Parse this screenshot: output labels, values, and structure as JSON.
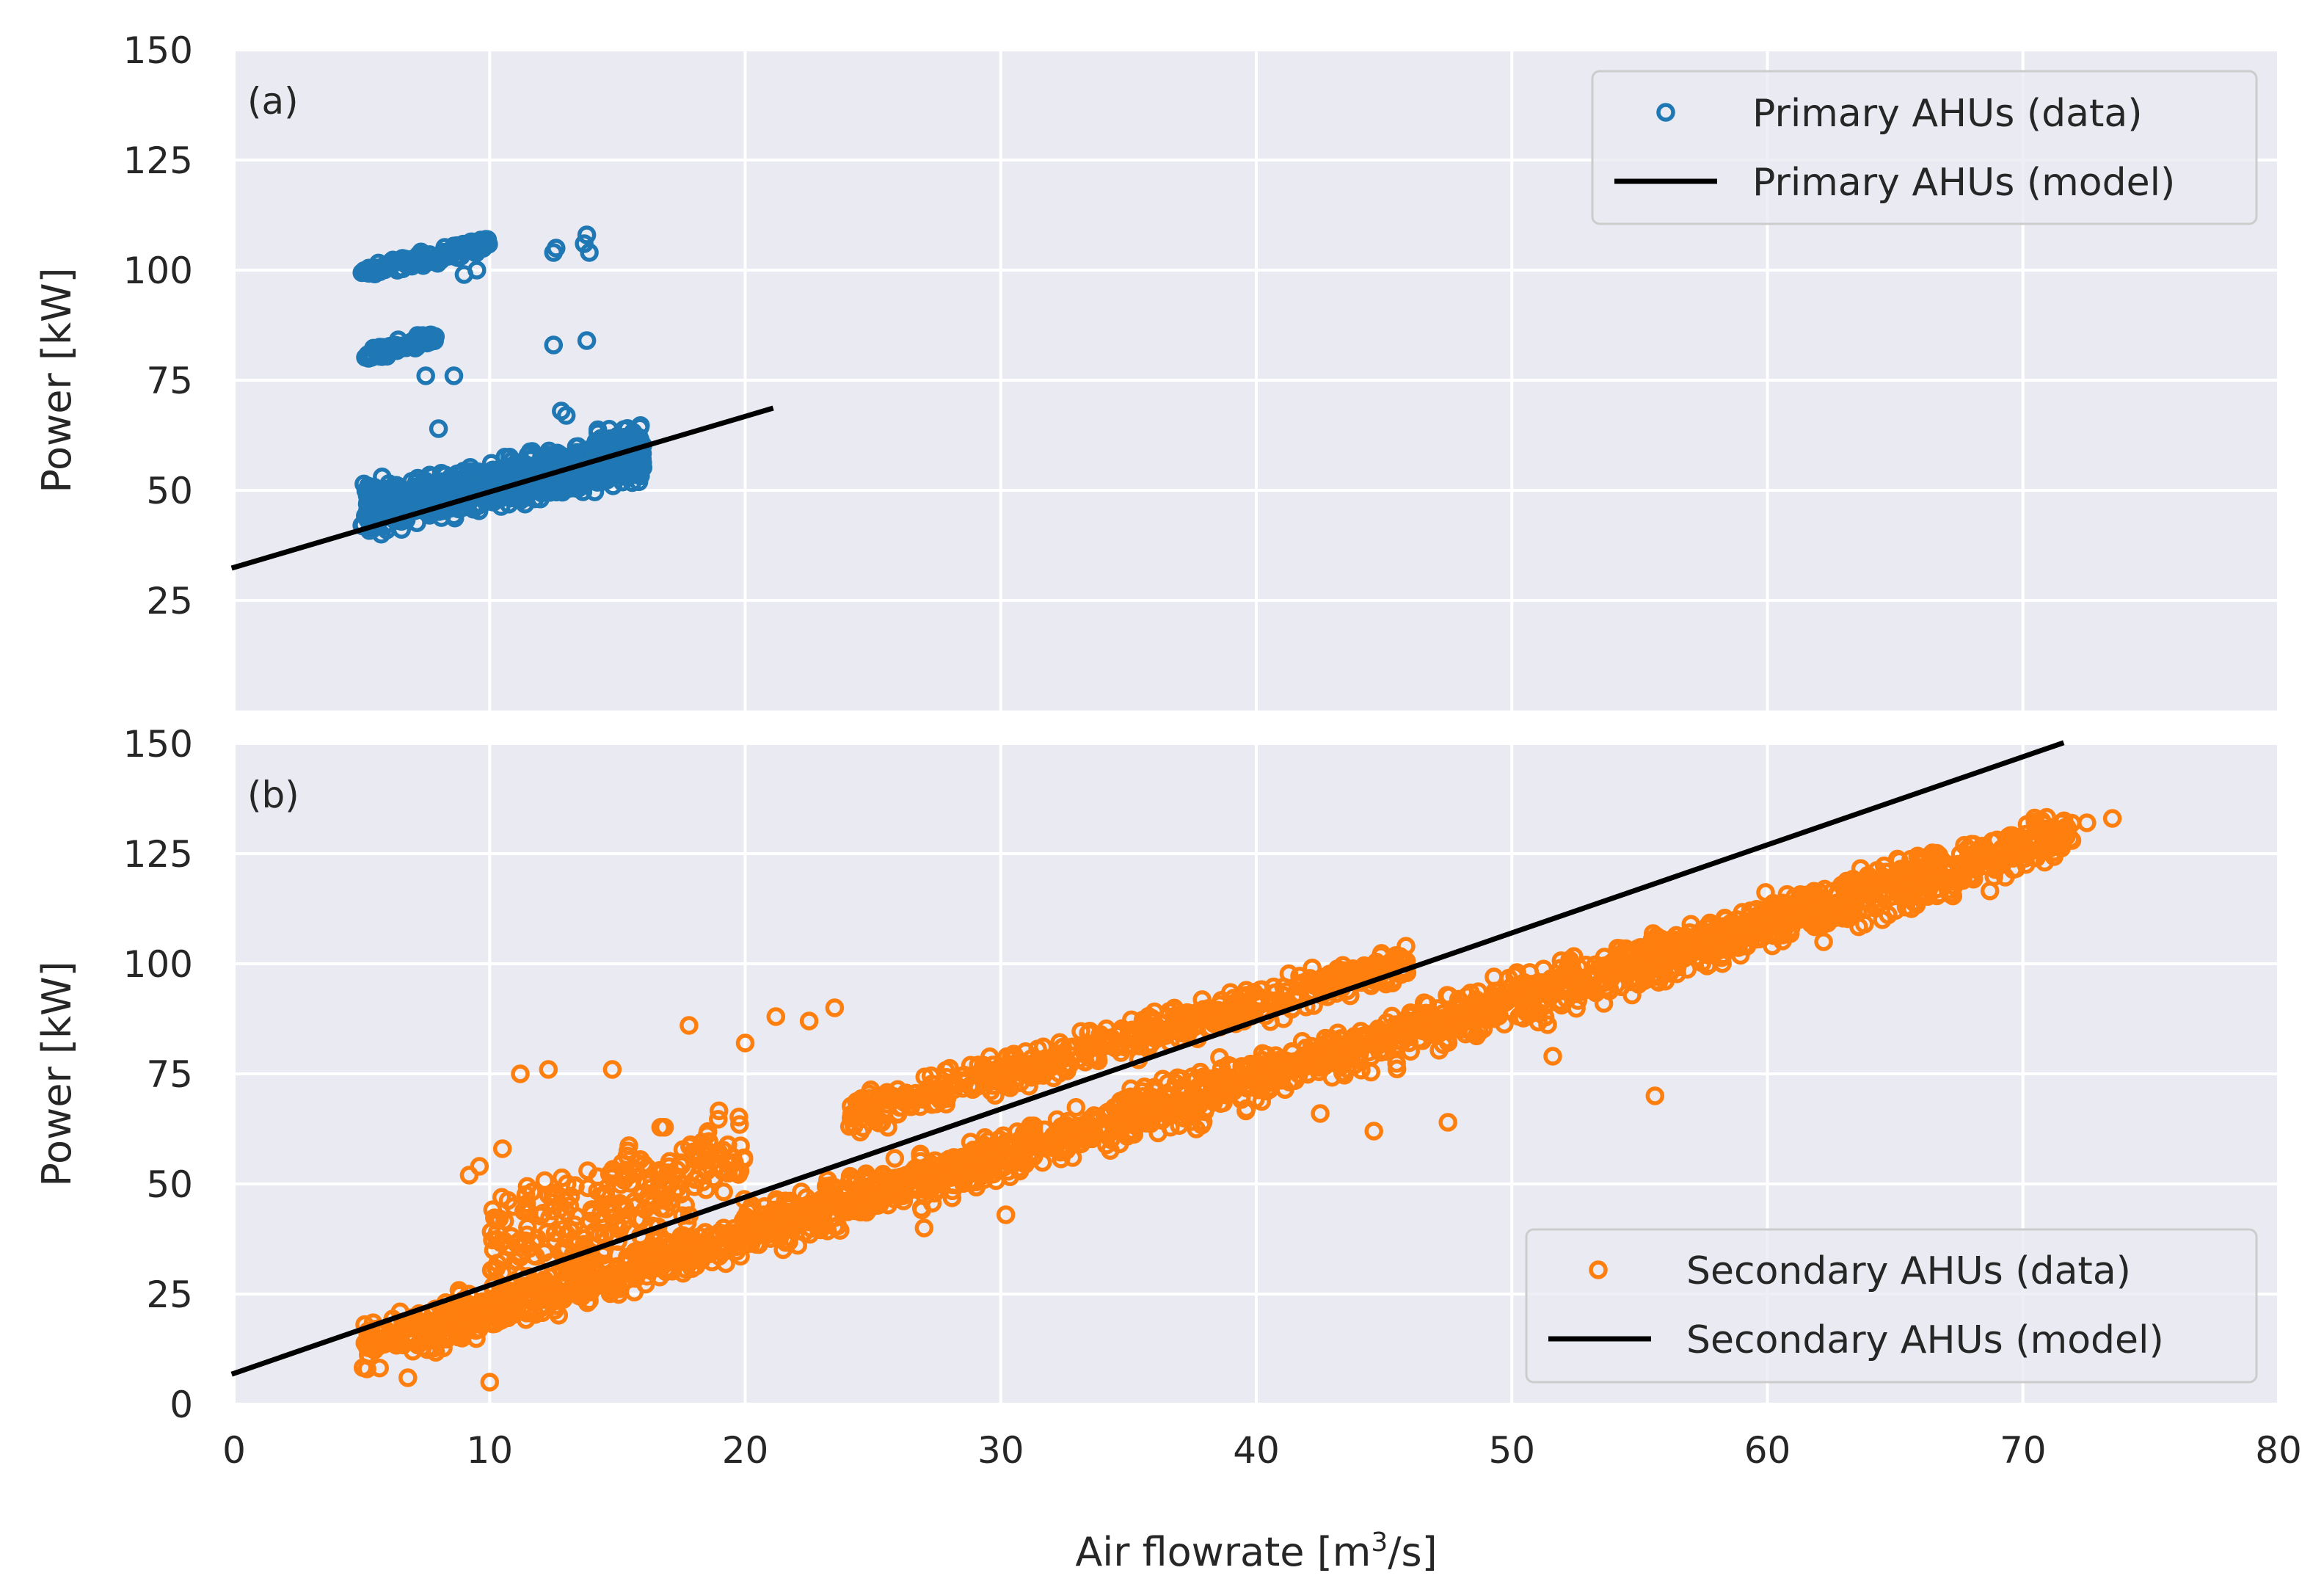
{
  "chart_data": [
    {
      "type": "scatter",
      "panel_label": "(a)",
      "xlabel": "",
      "ylabel": "Power [kW]",
      "xlim": [
        0,
        80
      ],
      "ylim": [
        0,
        150
      ],
      "xticks": [
        0,
        10,
        20,
        30,
        40,
        50,
        60,
        70,
        80
      ],
      "yticks": [
        25,
        50,
        75,
        100,
        125,
        150
      ],
      "legend_position": "top-right",
      "series": [
        {
          "name": "Primary AHUs (data)",
          "kind": "scatter",
          "color": "#1f77b4",
          "clusters": [
            {
              "x_range": [
                5,
                16
              ],
              "y_base": 40,
              "y_slope": 1.1,
              "y_spread": 7,
              "count": 900
            },
            {
              "x_range": [
                5,
                10
              ],
              "y_base": 93,
              "y_slope": 1.3,
              "y_spread": 2,
              "count": 120
            },
            {
              "x_range": [
                5,
                8
              ],
              "y_base": 73,
              "y_slope": 1.5,
              "y_spread": 2,
              "count": 70
            },
            {
              "x_range": [
                14,
                16
              ],
              "y_base": 58,
              "y_slope": 0,
              "y_spread": 9,
              "count": 140
            }
          ],
          "points": [
            [
              12.6,
              105
            ],
            [
              13.7,
              106
            ],
            [
              13.8,
              108
            ],
            [
              13.9,
              104
            ],
            [
              12.5,
              104
            ],
            [
              13.8,
              84
            ],
            [
              12.5,
              83
            ],
            [
              8,
              64
            ],
            [
              12.8,
              68
            ],
            [
              13,
              67
            ],
            [
              9,
              99
            ],
            [
              9.5,
              100
            ],
            [
              8.6,
              76
            ],
            [
              7.5,
              76
            ],
            [
              11,
              56
            ],
            [
              11.5,
              58
            ]
          ]
        },
        {
          "name": "Primary AHUs (model)",
          "kind": "line",
          "color": "#000000",
          "x": [
            0,
            21
          ],
          "y": [
            32.5,
            68.5
          ]
        }
      ]
    },
    {
      "type": "scatter",
      "panel_label": "(b)",
      "xlabel": "Air flowrate [m³/s]",
      "xlabel_base": "Air flowrate [m",
      "xlabel_sup": "3",
      "xlabel_tail": "/s]",
      "ylabel": "Power [kW]",
      "xlim": [
        0,
        80
      ],
      "ylim": [
        0,
        150
      ],
      "xticks": [
        0,
        10,
        20,
        30,
        40,
        50,
        60,
        70,
        80
      ],
      "yticks": [
        0,
        25,
        50,
        75,
        100,
        125,
        150
      ],
      "legend_position": "bottom-right",
      "series": [
        {
          "name": "Secondary AHUs (data)",
          "kind": "scatter",
          "color": "#ff7f0e",
          "clusters": [
            {
              "x_range": [
                5,
                72
              ],
              "y_base": 4,
              "y_slope": 1.75,
              "y_spread": 8,
              "count": 2200
            },
            {
              "x_range": [
                24,
                46
              ],
              "y_base": 27,
              "y_slope": 1.6,
              "y_spread": 6,
              "count": 500
            },
            {
              "x_range": [
                10,
                20
              ],
              "y_base": 14,
              "y_slope": 2.2,
              "y_spread": 16,
              "count": 250
            }
          ],
          "points": [
            [
              71.5,
              132
            ],
            [
              72.5,
              132
            ],
            [
              73.5,
              133
            ],
            [
              70.5,
              131
            ],
            [
              66,
              124
            ],
            [
              64.5,
              110
            ],
            [
              63.8,
              109
            ],
            [
              62.2,
              105
            ],
            [
              59.2,
              104
            ],
            [
              58.5,
              104
            ],
            [
              56.2,
              101
            ],
            [
              47.5,
              64
            ],
            [
              44.6,
              62
            ],
            [
              42.5,
              66
            ],
            [
              30.2,
              43
            ],
            [
              27,
              40
            ],
            [
              9.2,
              52
            ],
            [
              9.6,
              54
            ],
            [
              10.5,
              58
            ],
            [
              11.2,
              75
            ],
            [
              12.3,
              76
            ],
            [
              14.8,
              76
            ],
            [
              17.8,
              86
            ],
            [
              21.2,
              88
            ],
            [
              22.5,
              87
            ],
            [
              23.5,
              90
            ],
            [
              20,
              82
            ],
            [
              5.2,
              8
            ],
            [
              6.8,
              6
            ],
            [
              10,
              5
            ],
            [
              55.6,
              70
            ],
            [
              51.6,
              79
            ],
            [
              50.2,
              98
            ],
            [
              49.3,
              97
            ],
            [
              52.8,
              96
            ]
          ]
        },
        {
          "name": "Secondary AHUs (model)",
          "kind": "line",
          "color": "#000000",
          "x": [
            0,
            71.5
          ],
          "y": [
            7,
            150
          ]
        }
      ]
    }
  ]
}
